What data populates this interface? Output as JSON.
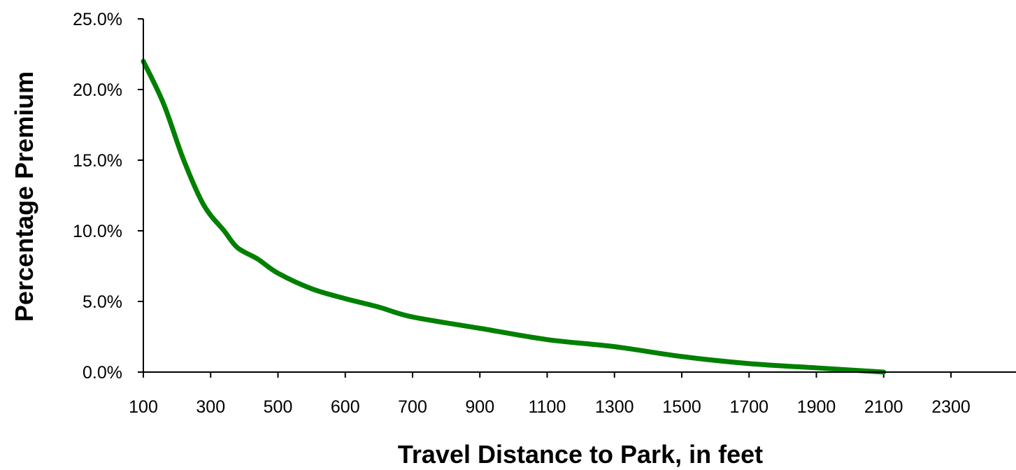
{
  "chart_data": {
    "type": "line",
    "xlabel": "Travel Distance to Park, in feet",
    "ylabel": "Percentage Premium",
    "title": "",
    "x_categories": [
      "100",
      "300",
      "500",
      "600",
      "700",
      "900",
      "1100",
      "1300",
      "1500",
      "1700",
      "1900",
      "2100",
      "2300"
    ],
    "y_ticks": [
      "0.0%",
      "5.0%",
      "10.0%",
      "15.0%",
      "20.0%",
      "25.0%"
    ],
    "ylim": [
      0,
      25
    ],
    "grid": false,
    "legend": "none",
    "series": [
      {
        "color": "#008000",
        "points": [
          {
            "x": 0.0,
            "y": 22.0
          },
          {
            "x": 0.3,
            "y": 19.0
          },
          {
            "x": 0.6,
            "y": 15.0
          },
          {
            "x": 0.9,
            "y": 11.8
          },
          {
            "x": 1.2,
            "y": 10.0
          },
          {
            "x": 1.4,
            "y": 8.8
          },
          {
            "x": 1.7,
            "y": 8.0
          },
          {
            "x": 2.0,
            "y": 7.0
          },
          {
            "x": 2.5,
            "y": 5.9
          },
          {
            "x": 3.0,
            "y": 5.2
          },
          {
            "x": 3.5,
            "y": 4.6
          },
          {
            "x": 4.0,
            "y": 3.9
          },
          {
            "x": 5.0,
            "y": 3.1
          },
          {
            "x": 6.0,
            "y": 2.3
          },
          {
            "x": 7.0,
            "y": 1.8
          },
          {
            "x": 8.0,
            "y": 1.1
          },
          {
            "x": 9.0,
            "y": 0.6
          },
          {
            "x": 10.0,
            "y": 0.3
          },
          {
            "x": 11.0,
            "y": 0.0
          }
        ]
      }
    ]
  }
}
